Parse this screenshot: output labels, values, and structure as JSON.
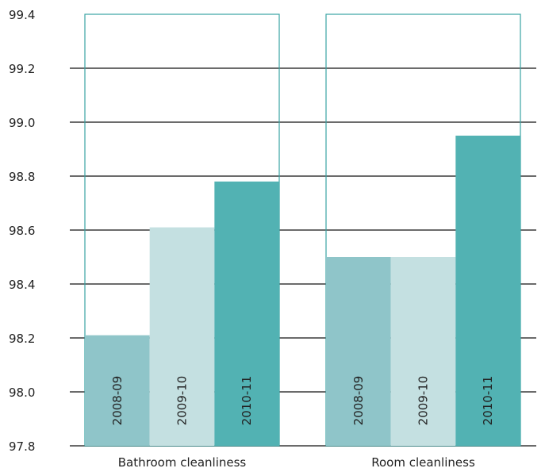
{
  "chart_data": {
    "type": "bar",
    "categories": [
      "Bathroom cleanliness",
      "Room cleanliness"
    ],
    "series": [
      {
        "name": "2008-09",
        "values": [
          98.21,
          98.5
        ],
        "color": "#8fc5c9"
      },
      {
        "name": "2009-10",
        "values": [
          98.61,
          98.5
        ],
        "color": "#c4e0e1"
      },
      {
        "name": "2010-11",
        "values": [
          98.78,
          98.95
        ],
        "color": "#52b2b3"
      }
    ],
    "ylim": [
      97.8,
      99.4
    ],
    "yticks": [
      "97.8",
      "98.0",
      "98.2",
      "98.4",
      "98.6",
      "98.8",
      "99.0",
      "99.2",
      "99.4"
    ],
    "grid": true,
    "series_labels_inside_bars": true,
    "group_outline_color": "#3aa3a4",
    "gridline_color": "#6b6b6b"
  }
}
